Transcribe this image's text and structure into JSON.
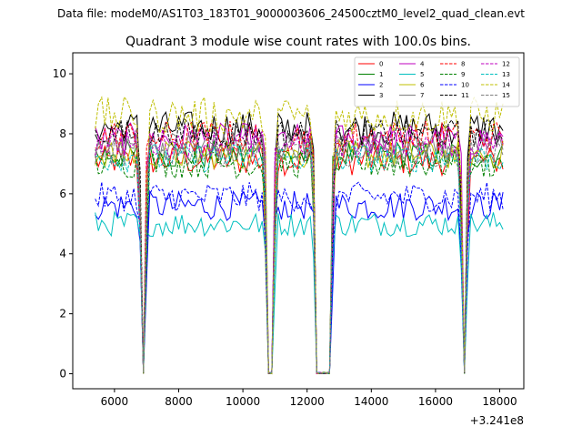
{
  "figure": {
    "suptitle": "Data file: modeM0/AS1T03_183T01_9000003606_24500cztM0_level2_quad_clean.evt"
  },
  "chart_data": {
    "type": "line",
    "title": "Quadrant 3 module wise count rates with 100.0s bins.",
    "xlabel": "",
    "ylabel": "",
    "x_offset_label": "+3.241e8",
    "xlim": [
      4700,
      18750
    ],
    "ylim": [
      -0.5,
      10.7
    ],
    "xticks": [
      6000,
      8000,
      10000,
      12000,
      14000,
      16000,
      18000
    ],
    "xtick_labels": [
      "6000",
      "8000",
      "10000",
      "12000",
      "14000",
      "16000",
      "18000"
    ],
    "yticks": [
      0,
      2,
      4,
      6,
      8,
      10
    ],
    "ytick_labels": [
      "0",
      "2",
      "4",
      "6",
      "8",
      "10"
    ],
    "grid": false,
    "legend_position": "top-right",
    "legend_columns": 4,
    "time_segments": [
      {
        "start": 5400,
        "end": 6800,
        "gap_after": true
      },
      {
        "start": 7000,
        "end": 10700,
        "gap_after": true
      },
      {
        "start": 11000,
        "end": 12200,
        "gap_after": true
      },
      {
        "start": 12800,
        "end": 16800,
        "gap_after": true
      },
      {
        "start": 17000,
        "end": 18100,
        "gap_after": false
      }
    ],
    "sample_spacing": 100,
    "series": [
      {
        "name": "0",
        "color": "#ff0000",
        "dash": "solid",
        "level": 7.1,
        "spread": 0.35
      },
      {
        "name": "1",
        "color": "#008000",
        "dash": "solid",
        "level": 7.3,
        "spread": 0.35
      },
      {
        "name": "2",
        "color": "#0000ff",
        "dash": "solid",
        "level": 5.6,
        "spread": 0.35
      },
      {
        "name": "3",
        "color": "#000000",
        "dash": "solid",
        "level": 8.2,
        "spread": 0.4
      },
      {
        "name": "4",
        "color": "#bf00bf",
        "dash": "solid",
        "level": 7.8,
        "spread": 0.4
      },
      {
        "name": "5",
        "color": "#00bfbf",
        "dash": "solid",
        "level": 5.0,
        "spread": 0.3
      },
      {
        "name": "6",
        "color": "#bfbf00",
        "dash": "solid",
        "level": 7.3,
        "spread": 0.35
      },
      {
        "name": "7",
        "color": "#808080",
        "dash": "solid",
        "level": 7.6,
        "spread": 0.35
      },
      {
        "name": "8",
        "color": "#ff0000",
        "dash": "dashed",
        "level": 7.9,
        "spread": 0.4
      },
      {
        "name": "9",
        "color": "#008000",
        "dash": "dashed",
        "level": 7.0,
        "spread": 0.35
      },
      {
        "name": "10",
        "color": "#0000ff",
        "dash": "dashed",
        "level": 5.9,
        "spread": 0.35
      },
      {
        "name": "11",
        "color": "#000000",
        "dash": "dashed",
        "level": 8.0,
        "spread": 0.35
      },
      {
        "name": "12",
        "color": "#bf00bf",
        "dash": "dashed",
        "level": 7.7,
        "spread": 0.35
      },
      {
        "name": "13",
        "color": "#00bfbf",
        "dash": "dashed",
        "level": 7.2,
        "spread": 0.35
      },
      {
        "name": "14",
        "color": "#bfbf00",
        "dash": "dashed",
        "level": 8.6,
        "spread": 0.45
      },
      {
        "name": "15",
        "color": "#808080",
        "dash": "dashed",
        "level": 7.4,
        "spread": 0.35
      }
    ]
  }
}
